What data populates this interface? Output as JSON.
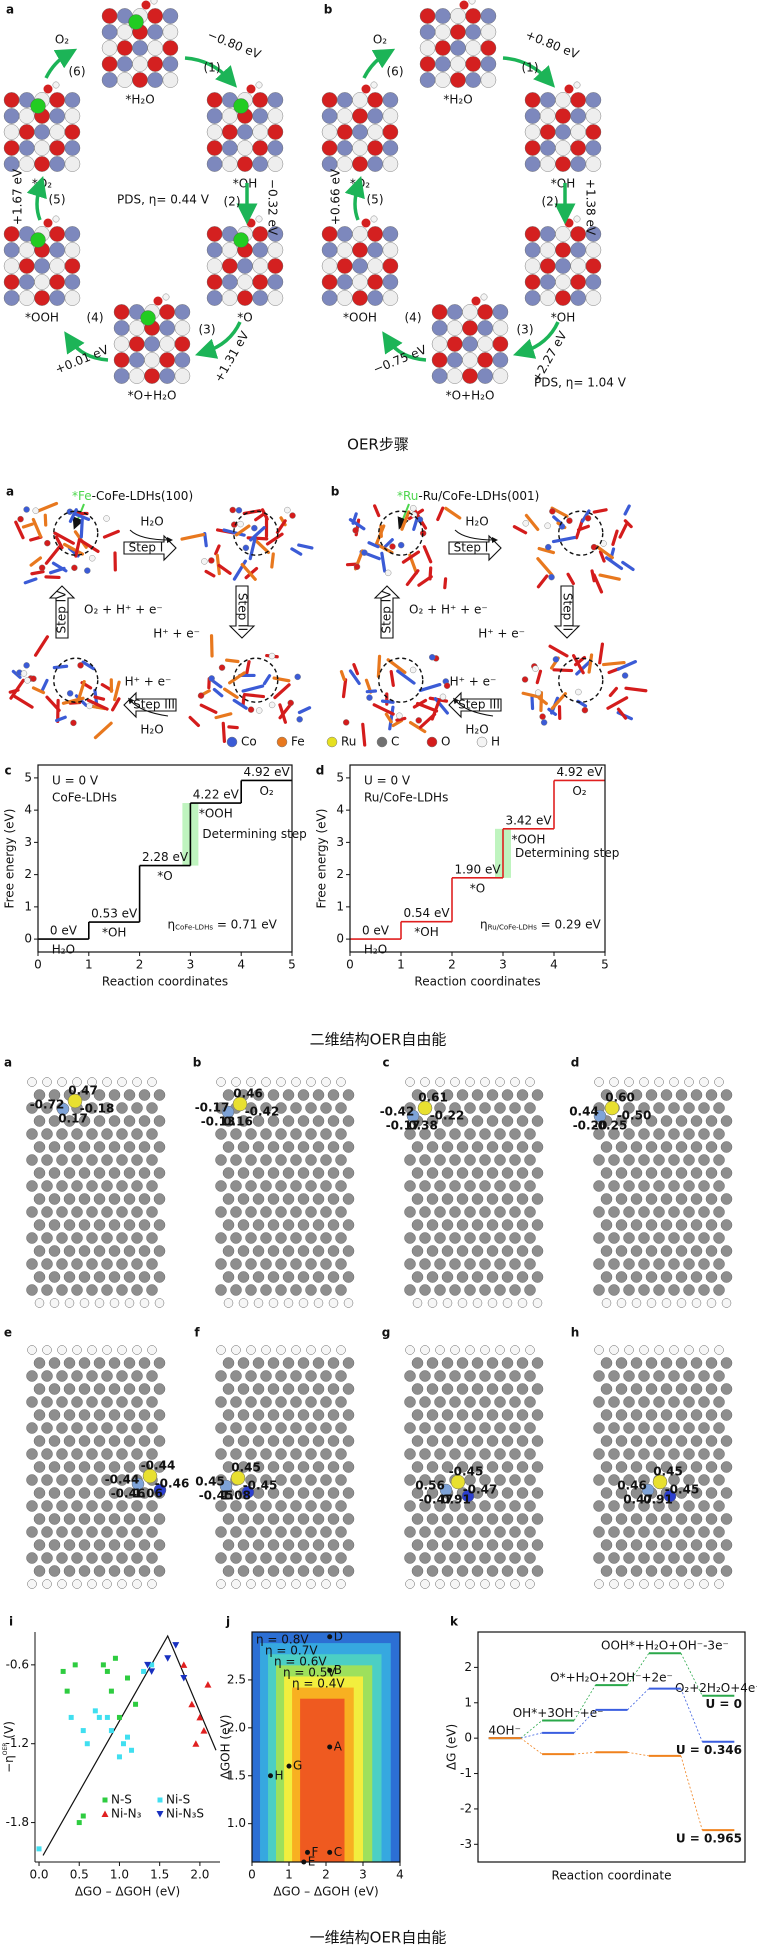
{
  "fig1": {
    "caption": "OER步骤",
    "panels": [
      {
        "letter": "a",
        "states": [
          "*H₂O",
          "*OH",
          "*O",
          "*O+H₂O",
          "*OOH",
          "*O₂"
        ],
        "steps": [
          "(1)",
          "(2)",
          "(3)",
          "(4)",
          "(5)",
          "(6)"
        ],
        "energies": [
          "−0.80 eV",
          "−0.32 eV",
          "+1.31 eV",
          "+0.01 eV",
          "+1.67 eV"
        ],
        "energy_colors": [
          "#26368a",
          "#26368a",
          "#26368a",
          "#26368a",
          "#26368a"
        ],
        "product": "O₂",
        "pds": "PDS, η= 0.44 V",
        "pds_color": "#f08a24",
        "accent": true
      },
      {
        "letter": "b",
        "states": [
          "*H₂O",
          "*OH",
          "*OH",
          "*O+H₂O",
          "*OOH",
          "*O₂"
        ],
        "steps": [
          "(1)",
          "(2)",
          "(3)",
          "(4)",
          "(5)",
          "(6)"
        ],
        "energies": [
          "+0.80 eV",
          "+1.38 eV",
          "+2.27 eV",
          "−0.75 eV",
          "+0.66 eV"
        ],
        "energy_colors": [
          "#26368a",
          "#26368a",
          "#4a8fd0",
          "#4a8fd0",
          "#4a8fd0"
        ],
        "product": "O₂",
        "pds": "PDS, η= 1.04 V",
        "pds_color": "#f08a24",
        "accent": false
      }
    ]
  },
  "fig2": {
    "caption": "二维结构OER自由能",
    "panels": [
      {
        "letter": "a",
        "site": "*Fe",
        "name": "-CoFe-LDHs(100)",
        "steps": [
          "Step I",
          "Step II",
          "Step III",
          "Step IV"
        ],
        "species": [
          "H₂O",
          "H⁺ + e⁻",
          "H⁺ + e⁻",
          "H₂O",
          "O₂ + H⁺ + e⁻"
        ]
      },
      {
        "letter": "b",
        "site": "*Ru",
        "name": "-Ru/CoFe-LDHs(001)",
        "steps": [
          "Step I",
          "Step II",
          "Step III",
          "Step IV"
        ],
        "species": [
          "H₂O",
          "H⁺ + e⁻",
          "H⁺ + e⁻",
          "H₂O",
          "O₂ + H⁺ + e⁻"
        ]
      }
    ],
    "site_color": "#4cd64c",
    "legend": [
      {
        "name": "Co",
        "color": "#3b5bd6"
      },
      {
        "name": "Fe",
        "color": "#e8781e"
      },
      {
        "name": "Ru",
        "color": "#e6e020"
      },
      {
        "name": "C",
        "color": "#707070"
      },
      {
        "name": "O",
        "color": "#d41c1c"
      },
      {
        "name": "H",
        "color": "#f4f4f4"
      }
    ]
  },
  "fig3": {
    "caption": "一维结构OER自由能",
    "panels": [
      {
        "letter": "a",
        "charges": [
          "0.47",
          "-0.72",
          "0.17",
          "-0.18"
        ]
      },
      {
        "letter": "b",
        "charges": [
          "0.46",
          "-0.17",
          "0.16",
          "-0.42",
          "-0.13"
        ]
      },
      {
        "letter": "c",
        "charges": [
          "0.61",
          "-0.42",
          "0.38",
          "-0.22",
          "-0.17"
        ]
      },
      {
        "letter": "d",
        "charges": [
          "0.60",
          "0.44",
          "-0.25",
          "-0.50",
          "-0.20"
        ]
      },
      {
        "letter": "e",
        "charges": [
          "-0.44",
          "-0.44",
          "1.06",
          "-0.46",
          "-0.46"
        ]
      },
      {
        "letter": "f",
        "charges": [
          "0.45",
          "0.45",
          "1.08",
          "-0.45",
          "-0.45"
        ]
      },
      {
        "letter": "g",
        "charges": [
          "-0.45",
          "0.56",
          "0.91",
          "-0.47",
          "-0.47"
        ]
      },
      {
        "letter": "h",
        "charges": [
          "0.45",
          "0.46",
          "0.91",
          "-0.45",
          "0.47"
        ]
      }
    ]
  },
  "chart_data": [
    {
      "type": "step",
      "letter": "c",
      "frame": true,
      "color": "#000000",
      "xlabel": "Reaction coordinates",
      "ylabel": "Free energy (eV)",
      "xlim": [
        0,
        5
      ],
      "xticks": [
        0,
        1,
        2,
        3,
        4,
        5
      ],
      "ylim": [
        -0.4,
        5.4
      ],
      "yticks": [
        0,
        1,
        2,
        3,
        4,
        5
      ],
      "categories": [
        "H₂O",
        "*OH",
        "*O",
        "*OOH",
        "O₂"
      ],
      "values": [
        0,
        0.53,
        2.28,
        4.22,
        4.92
      ],
      "value_labels": [
        "0 eV",
        "0.53 eV",
        "2.28 eV",
        "4.22 eV",
        "4.92 eV"
      ],
      "notes": [
        "U = 0 V",
        "CoFe-LDHs"
      ],
      "determining_label": "Determining step",
      "determining_color": "#6fdc6f",
      "highlight_color": "#b4f2b4",
      "overpotential": {
        "symbol": "η",
        "subscript": "CoFe-LDHs",
        "text": " = 0.71 eV"
      }
    },
    {
      "type": "step",
      "letter": "d",
      "frame": true,
      "color": "#e02020",
      "xlabel": "Reaction coordinates",
      "ylabel": "Free energy (eV)",
      "xlim": [
        0,
        5
      ],
      "xticks": [
        0,
        1,
        2,
        3,
        4,
        5
      ],
      "ylim": [
        -0.4,
        5.4
      ],
      "yticks": [
        0,
        1,
        2,
        3,
        4,
        5
      ],
      "categories": [
        "H₂O",
        "*OH",
        "*O",
        "*OOH",
        "O₂"
      ],
      "values": [
        0,
        0.54,
        1.9,
        3.42,
        4.92
      ],
      "value_labels": [
        "0 eV",
        "0.54 eV",
        "1.90 eV",
        "3.42 eV",
        "4.92 eV"
      ],
      "notes": [
        "U = 0 V",
        "Ru/CoFe-LDHs"
      ],
      "determining_label": "Determining step",
      "determining_color": "#6fdc6f",
      "highlight_color": "#b4f2b4",
      "overpotential": {
        "symbol": "η",
        "subscript": "Ru/CoFe-LDHs",
        "text": " = 0.29 eV"
      }
    },
    {
      "type": "scatter",
      "letter": "i",
      "frame": false,
      "xlabel": "ΔGO – ΔGOH (eV)",
      "ylabel": "−η",
      "ylabel_sup": "OER",
      "ylabel_unit": " (V)",
      "xlim": [
        -0.05,
        2.25
      ],
      "xticks": [
        {
          "value": 0,
          "label": "0.0"
        },
        0.5,
        {
          "value": 1,
          "label": "1.0"
        },
        1.5,
        {
          "value": 2,
          "label": "2.0"
        }
      ],
      "ylim": [
        -2.1,
        -0.35
      ],
      "yticks": [
        -0.6,
        -1.2,
        -1.8
      ],
      "series": [
        {
          "name": "N-S",
          "color": "#2ecc40",
          "marker": "square",
          "x": [
            0.3,
            0.35,
            0.45,
            0.5,
            0.55,
            0.8,
            0.85,
            0.9,
            0.95,
            1.0,
            1.1,
            1.2
          ],
          "values": [
            -0.65,
            -0.8,
            -0.6,
            -1.8,
            -1.75,
            -0.6,
            -0.65,
            -0.8,
            -0.55,
            -1.0,
            -0.7,
            -0.9
          ]
        },
        {
          "name": "Ni-S",
          "color": "#40dff0",
          "marker": "square",
          "x": [
            0.0,
            0.4,
            0.55,
            0.6,
            0.7,
            0.75,
            0.85,
            0.9,
            1.0,
            1.05,
            1.1,
            1.15,
            1.3,
            1.4
          ],
          "values": [
            -2.0,
            -1.0,
            -1.1,
            -1.2,
            -0.95,
            -1.0,
            -1.0,
            -1.1,
            -1.3,
            -1.2,
            -1.15,
            -1.25,
            -0.65,
            -0.6
          ]
        },
        {
          "name": "Ni-N₃",
          "color": "#e02020",
          "marker": "triangle",
          "x": [
            1.8,
            1.9,
            2.0,
            2.05,
            2.1,
            1.95
          ],
          "values": [
            -0.6,
            -0.9,
            -1.0,
            -1.1,
            -0.75,
            -1.2
          ]
        },
        {
          "name": "Ni-N₃S",
          "color": "#1830c0",
          "marker": "triangle-down",
          "x": [
            1.35,
            1.4,
            1.6,
            1.7,
            1.8
          ],
          "values": [
            -0.6,
            -0.65,
            -0.55,
            -0.45,
            -0.7
          ]
        }
      ],
      "volcano_x": [
        0.05,
        1.6,
        2.2
      ],
      "volcano_y": [
        -2.05,
        -0.38,
        -1.25
      ]
    },
    {
      "type": "contour",
      "letter": "j",
      "frame": true,
      "xlabel": "ΔGO – ΔGOH (eV)",
      "ylabel": "ΔGOH (eV)",
      "xlim": [
        0,
        4
      ],
      "xticks": [
        0,
        1,
        2,
        3,
        4
      ],
      "ylim": [
        0.6,
        3.0
      ],
      "yticks": [
        {
          "value": 1,
          "label": "1.0"
        },
        1.5,
        {
          "value": 2,
          "label": "2.0"
        },
        2.5
      ],
      "contour_labels": [
        "η = 0.8V",
        "η = 0.7V",
        "η = 0.6V",
        "η = 0.5V",
        "η = 0.4V"
      ],
      "contour_colors": [
        "#2c6fd4",
        "#36a8e0",
        "#4ccfc4",
        "#9ee05c",
        "#f2ee3e",
        "#f8b021",
        "#ef5a20"
      ],
      "point_labels": [
        "A",
        "B",
        "C",
        "D",
        "E",
        "F",
        "G",
        "H"
      ],
      "x": [
        2.1,
        2.1,
        2.1,
        2.1,
        1.4,
        1.5,
        1.0,
        0.5
      ],
      "values": [
        1.8,
        2.6,
        0.7,
        2.95,
        0.6,
        0.7,
        1.6,
        1.5
      ]
    },
    {
      "type": "levels",
      "letter": "k",
      "frame": true,
      "xlabel": "Reaction coordinate",
      "ylabel": "ΔG (eV)",
      "ylim": [
        -3.5,
        3.0
      ],
      "yticks": [
        -3,
        -2,
        -1,
        0,
        1,
        2
      ],
      "categories": [
        "4OH⁻",
        "OH*+3OH⁻+e⁻",
        "O*+H₂O+2OH⁻+2e⁻",
        "OOH*+H₂O+OH⁻-3e⁻",
        "O₂+2H₂O+4e⁻"
      ],
      "series": [
        {
          "name": "U = 0",
          "color": "#2aa84a",
          "values": [
            0,
            0.5,
            1.5,
            2.4,
            1.2
          ]
        },
        {
          "name": "U = 0.346",
          "color": "#3a5ee0",
          "values": [
            0,
            0.15,
            0.8,
            1.4,
            -0.1
          ]
        },
        {
          "name": "U = 0.965",
          "color": "#f0821e",
          "values": [
            0,
            -0.45,
            -0.4,
            -0.5,
            -2.6
          ]
        }
      ]
    }
  ]
}
